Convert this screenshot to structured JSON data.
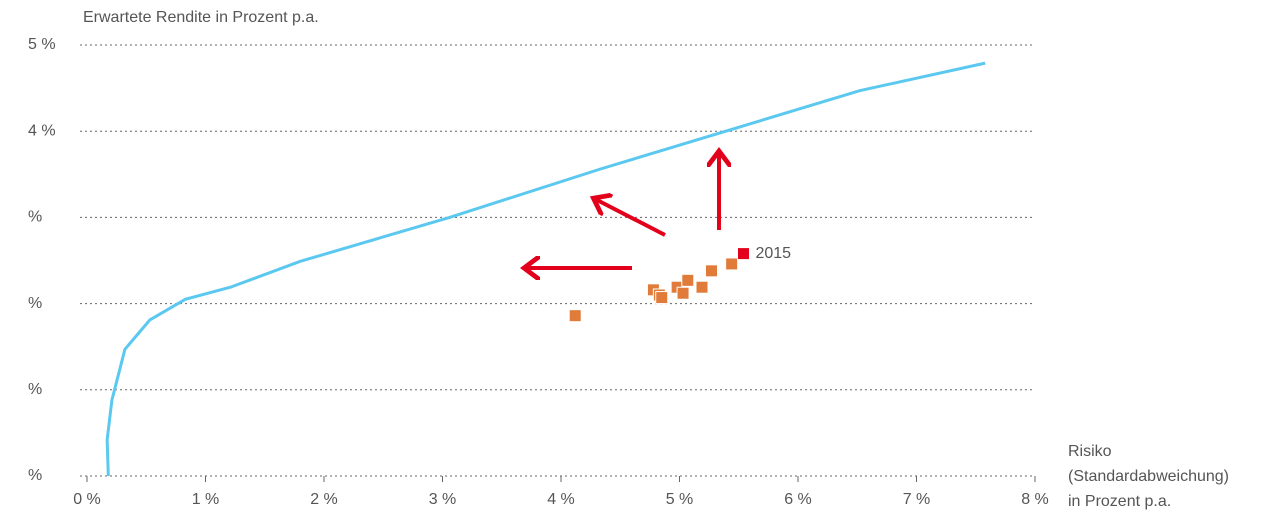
{
  "chart_data": {
    "type": "scatter",
    "title": "Erwartete Rendite in Prozent p.a.",
    "xlabel": [
      "Risiko",
      "(Standardabweichung)",
      "in Prozent p.a."
    ],
    "xlim": [
      0,
      8
    ],
    "ylim": [
      0,
      5
    ],
    "xticks": [
      {
        "value": 0,
        "label": "0 %"
      },
      {
        "value": 1,
        "label": "1 %"
      },
      {
        "value": 2,
        "label": "2 %"
      },
      {
        "value": 3,
        "label": "3 %"
      },
      {
        "value": 4,
        "label": "4 %"
      },
      {
        "value": 5,
        "label": "5 %"
      },
      {
        "value": 6,
        "label": "6 %"
      },
      {
        "value": 7,
        "label": "7 %"
      },
      {
        "value": 8,
        "label": "8 %"
      }
    ],
    "yticks": [
      {
        "value": 0,
        "label": "%"
      },
      {
        "value": 1,
        "label": "%"
      },
      {
        "value": 2,
        "label": "%"
      },
      {
        "value": 3,
        "label": "%"
      },
      {
        "value": 4,
        "label": "4 %"
      },
      {
        "value": 5,
        "label": "5 %"
      }
    ],
    "grid": true,
    "series": [
      {
        "type": "line",
        "color": "#5bc8f0",
        "x": [
          0.18,
          0.17,
          0.21,
          0.32,
          0.53,
          0.83,
          1.21,
          1.8,
          3.06,
          4.33,
          5.51,
          6.52,
          7.58
        ],
        "values": [
          0,
          0.42,
          0.88,
          1.47,
          1.81,
          2.05,
          2.19,
          2.49,
          3.0,
          3.56,
          4.05,
          4.47,
          4.79
        ]
      },
      {
        "type": "scatter",
        "color": "#e07b39",
        "x": [
          4.12,
          4.78,
          4.83,
          4.85,
          4.98,
          5.03,
          5.07,
          5.19,
          5.27,
          5.44
        ],
        "values": [
          1.86,
          2.16,
          2.1,
          2.07,
          2.19,
          2.12,
          2.27,
          2.19,
          2.38,
          2.46
        ]
      },
      {
        "type": "scatter",
        "name": "2015",
        "color": "#e3001b",
        "x": [
          5.54
        ],
        "values": [
          2.58
        ]
      }
    ]
  }
}
